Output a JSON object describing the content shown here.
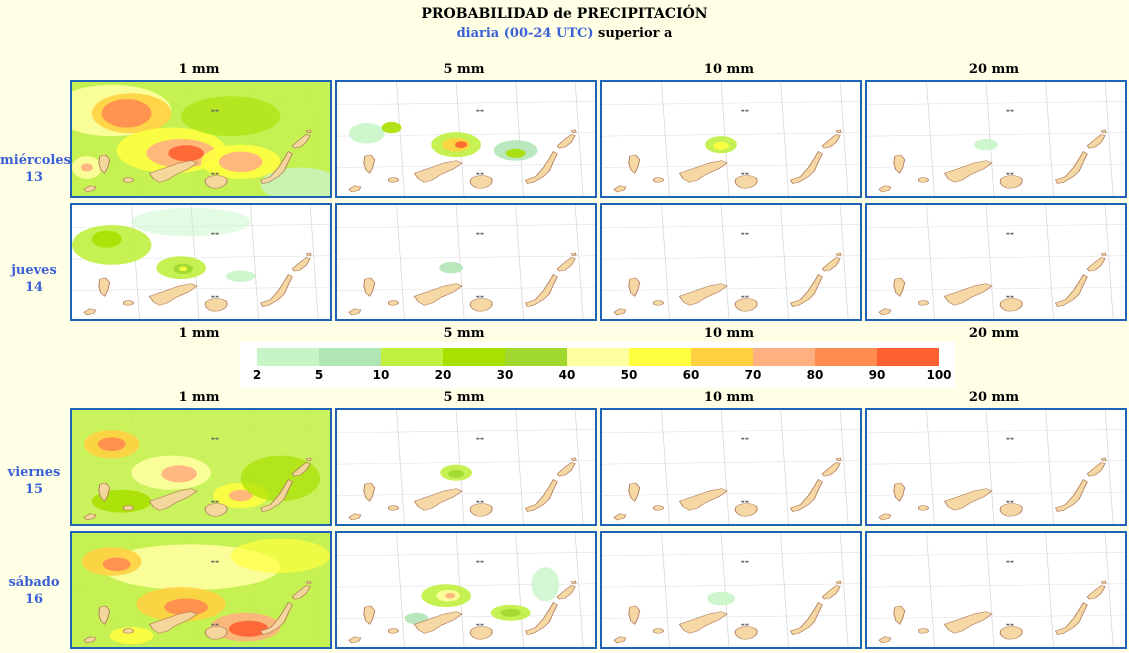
{
  "header": {
    "title": "PROBABILIDAD de PRECIPITACIÓN",
    "subtitle_blue": "diaria (00-24 UTC)",
    "subtitle_black": "superior a"
  },
  "thresholds": [
    "1 mm",
    "5 mm",
    "10 mm",
    "20 mm"
  ],
  "days": [
    {
      "name": "miércoles",
      "num": "13"
    },
    {
      "name": "jueves",
      "num": "14"
    },
    {
      "name": "viernes",
      "num": "15"
    },
    {
      "name": "sábado",
      "num": "16"
    }
  ],
  "legend": {
    "ticks": [
      "2",
      "5",
      "10",
      "20",
      "30",
      "40",
      "50",
      "60",
      "70",
      "80",
      "90",
      "100"
    ],
    "colors": [
      "#c8f5c8",
      "#b0e6b4",
      "#c0f040",
      "#a8e000",
      "#a0d830",
      "#ffffa0",
      "#ffff40",
      "#ffd040",
      "#ffb080",
      "#ff8c50",
      "#ff6030"
    ]
  },
  "panel_colors": {
    "land": "#f6d6a0",
    "coast": "#b07a5a",
    "grid": "#d8d8d8",
    "border": "#1f63b8"
  }
}
